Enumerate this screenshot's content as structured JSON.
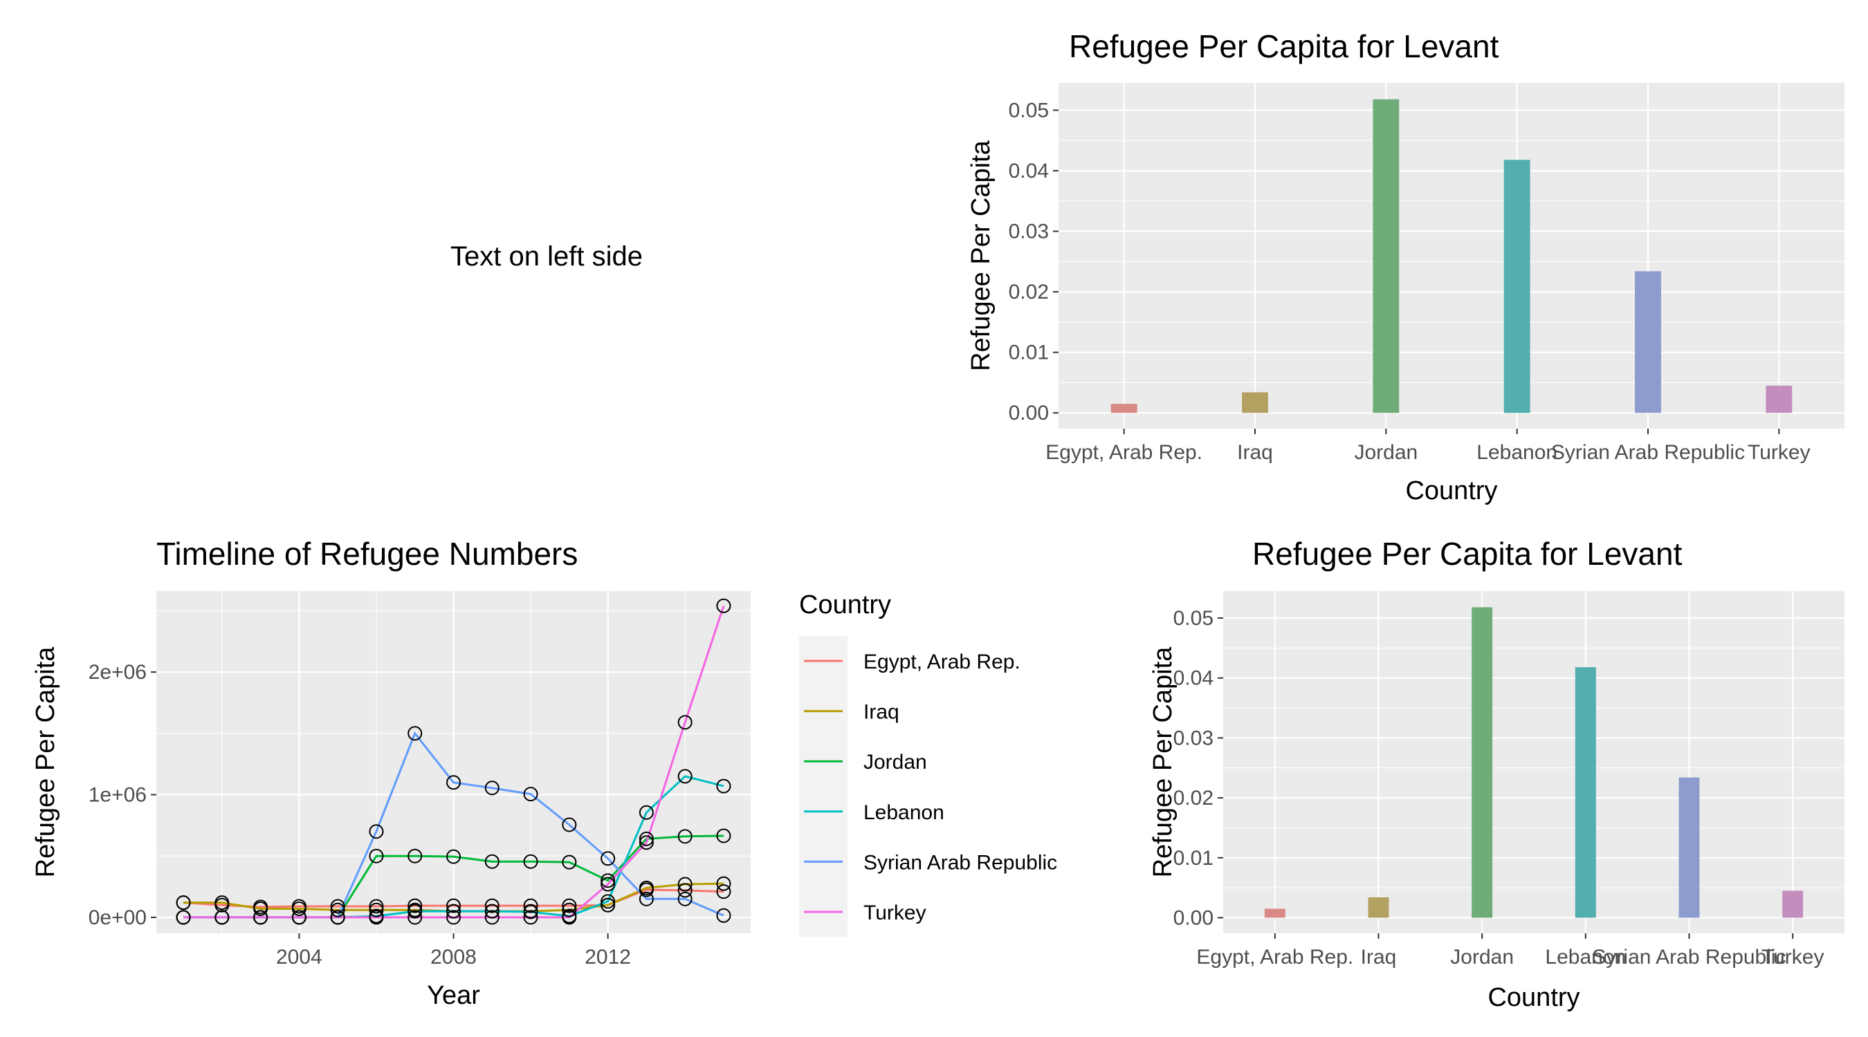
{
  "free_text": "Text on left side",
  "chart_data": [
    {
      "id": "bar_top",
      "type": "bar",
      "title": "Refugee Per Capita for Levant",
      "xlabel": "Country",
      "ylabel": "Refugee Per Capita",
      "categories": [
        "Egypt, Arab Rep.",
        "Iraq",
        "Jordan",
        "Lebanon",
        "Syrian Arab Republic",
        "Turkey"
      ],
      "values": [
        0.0015,
        0.0034,
        0.0518,
        0.0418,
        0.0234,
        0.0045
      ],
      "yticks": [
        0.0,
        0.01,
        0.02,
        0.03,
        0.04,
        0.05
      ],
      "ytick_labels": [
        "0.00",
        "0.01",
        "0.02",
        "0.03",
        "0.04",
        "0.05"
      ],
      "ylim": [
        -0.0026,
        0.0545
      ],
      "colors": [
        "#d98a86",
        "#b3a161",
        "#6fac7a",
        "#52aeaf",
        "#8e9ccd",
        "#c38ebd"
      ],
      "legend": "none",
      "grid": true
    },
    {
      "id": "bar_bottom",
      "type": "bar",
      "title": "Refugee Per Capita for Levant",
      "xlabel": "Country",
      "ylabel": "Refugee Per Capita",
      "categories": [
        "Egypt, Arab Rep.",
        "Iraq",
        "Jordan",
        "Lebanon",
        "Syrian Arab Republic",
        "Turkey"
      ],
      "values": [
        0.0015,
        0.0034,
        0.0518,
        0.0418,
        0.0234,
        0.0045
      ],
      "yticks": [
        0.0,
        0.01,
        0.02,
        0.03,
        0.04,
        0.05
      ],
      "ytick_labels": [
        "0.00",
        "0.01",
        "0.02",
        "0.03",
        "0.04",
        "0.05"
      ],
      "ylim": [
        -0.0026,
        0.0545
      ],
      "colors": [
        "#d98a86",
        "#b3a161",
        "#6fac7a",
        "#52aeaf",
        "#8e9ccd",
        "#c38ebd"
      ],
      "legend": "none",
      "grid": true
    },
    {
      "id": "timeline",
      "type": "line",
      "title": "Timeline of Refugee Numbers",
      "xlabel": "Year",
      "ylabel": "Refugee Per Capita",
      "xticks": [
        2004,
        2008,
        2012
      ],
      "xtick_labels": [
        "2004",
        "2008",
        "2012"
      ],
      "yticks": [
        0,
        1000000,
        2000000
      ],
      "ytick_labels": [
        "0e+00",
        "1e+06",
        "2e+06"
      ],
      "xlim": [
        2000.3,
        2015.7
      ],
      "ylim": [
        -130000,
        2660000
      ],
      "x": [
        2001,
        2002,
        2003,
        2004,
        2005,
        2006,
        2007,
        2008,
        2009,
        2010,
        2011,
        2012,
        2013,
        2014,
        2015
      ],
      "legend_title": "Country",
      "legend": "right",
      "grid": true,
      "series": [
        {
          "name": "Egypt, Arab Rep.",
          "color": "#F8766D",
          "values": [
            120000,
            100000,
            85000,
            90000,
            90000,
            90000,
            95000,
            95000,
            95000,
            95000,
            95000,
            100000,
            225000,
            220000,
            210000
          ]
        },
        {
          "name": "Iraq",
          "color": "#B79F00",
          "values": [
            120000,
            120000,
            70000,
            70000,
            60000,
            60000,
            60000,
            50000,
            50000,
            50000,
            60000,
            100000,
            240000,
            270000,
            275000
          ]
        },
        {
          "name": "Jordan",
          "color": "#00BA38",
          "values": [
            0,
            0,
            0,
            0,
            0,
            500000,
            500000,
            495000,
            455000,
            455000,
            450000,
            300000,
            640000,
            660000,
            665000
          ]
        },
        {
          "name": "Lebanon",
          "color": "#00BFC4",
          "values": [
            0,
            0,
            0,
            0,
            0,
            10000,
            50000,
            50000,
            50000,
            45000,
            10000,
            130000,
            855000,
            1150000,
            1070000
          ]
        },
        {
          "name": "Syrian Arab Republic",
          "color": "#619CFF",
          "values": [
            0,
            0,
            0,
            0,
            0,
            700000,
            1500000,
            1100000,
            1055000,
            1005000,
            755000,
            480000,
            150000,
            150000,
            15000
          ]
        },
        {
          "name": "Turkey",
          "color": "#F564E3",
          "values": [
            0,
            0,
            0,
            0,
            0,
            0,
            0,
            0,
            0,
            0,
            0,
            270000,
            610000,
            1590000,
            2540000
          ]
        }
      ]
    }
  ]
}
